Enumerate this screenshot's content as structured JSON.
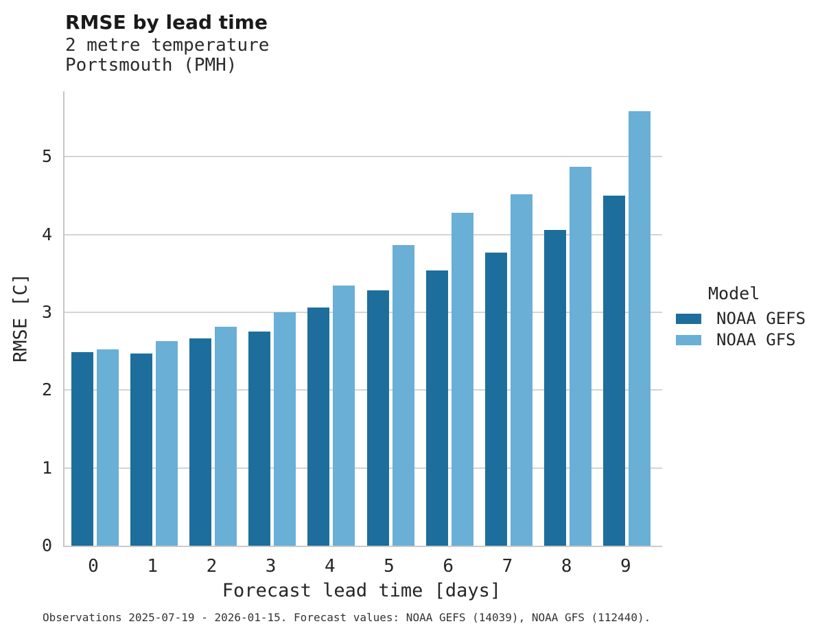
{
  "header": {
    "title": "RMSE by lead time",
    "subtitle_line1": "2 metre temperature",
    "subtitle_line2": "Portsmouth (PMH)"
  },
  "chart_data": {
    "type": "bar",
    "title": "RMSE by lead time",
    "subtitle_line1": "2 metre temperature",
    "subtitle_line2": "Portsmouth (PMH)",
    "categories": [
      "0",
      "1",
      "2",
      "3",
      "4",
      "5",
      "6",
      "7",
      "8",
      "9"
    ],
    "series": [
      {
        "name": "NOAA GEFS",
        "color": "#1d6e9c",
        "values": [
          2.49,
          2.47,
          2.66,
          2.75,
          3.06,
          3.28,
          3.54,
          3.77,
          4.06,
          4.5
        ]
      },
      {
        "name": "NOAA GFS",
        "color": "#69afd6",
        "values": [
          2.52,
          2.63,
          2.81,
          3.0,
          3.34,
          3.86,
          4.28,
          4.52,
          4.87,
          5.58
        ]
      }
    ],
    "xlabel": "Forecast lead time [days]",
    "ylabel": "RMSE [C]",
    "ylim": [
      0,
      5.84
    ],
    "yticks": [
      0,
      1,
      2,
      3,
      4,
      5
    ],
    "grid": "horizontal",
    "grid_color": "#d4d4d4",
    "spine_color": "#c6c6c6",
    "legend_title": "Model",
    "legend_position": "right"
  },
  "footer": {
    "caption": "Observations 2025-07-19 - 2026-01-15. Forecast values: NOAA GEFS (14039), NOAA GFS (112440)."
  }
}
